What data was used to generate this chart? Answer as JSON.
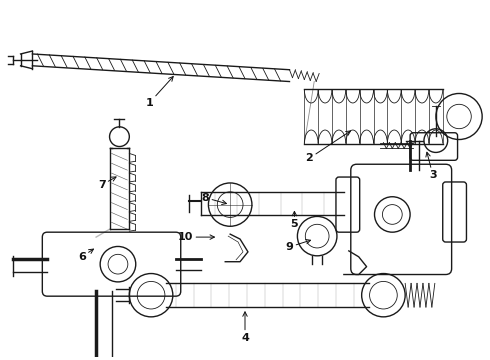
{
  "background_color": "#ffffff",
  "line_color": "#1a1a1a",
  "label_color": "#111111",
  "figsize": [
    4.9,
    3.6
  ],
  "dpi": 100
}
